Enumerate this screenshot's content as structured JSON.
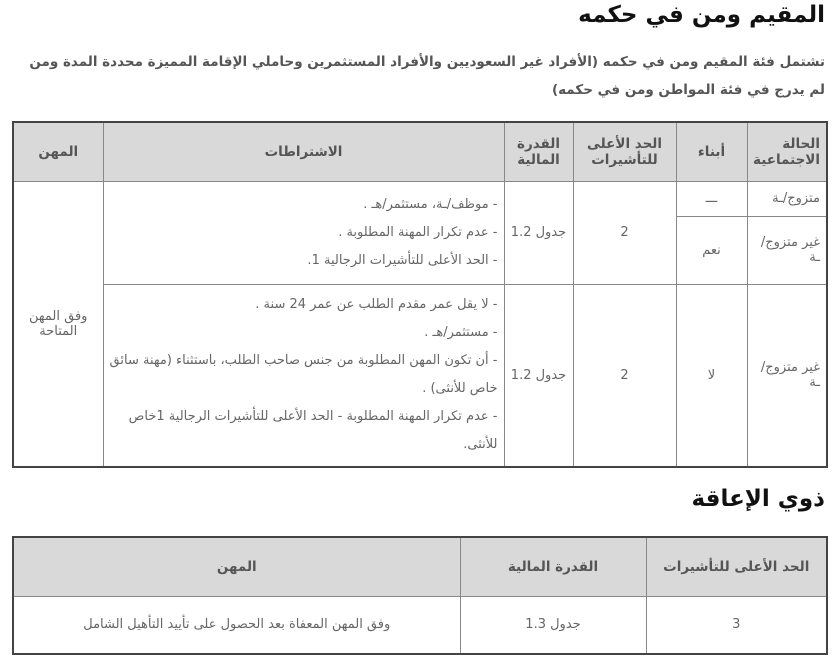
{
  "resident": {
    "title": "المقيم ومن في حكمه",
    "intro": "تشتمل فئة المقيم ومن في حكمه (الأفراد غير السعوديين والأفراد المستثمرين وحاملي الإقامة المميزة محددة المدة ومن لم يدرج في فئة المواطن ومن في حكمه)",
    "headers": [
      "الحالة الاجتماعية",
      "أبناء",
      "الحد الأعلى للتأشيرات",
      "القدرة المالية",
      "الاشتراطات",
      "المهن"
    ],
    "rows": [
      {
        "status_a": "متزوج/ـة",
        "children_a": "ـــ",
        "status_b": "غير متزوج/ـة",
        "children_b": "نعم",
        "max_visas": "2",
        "financial": "جدول 1.2",
        "conditions": [
          "- موظف/ـة، مستثمر/هـ .",
          "- عدم تكرار المهنة المطلوبة .",
          "- الحد الأعلى للتأشيرات الرجالية 1."
        ]
      },
      {
        "status": "غير متزوج/ـة",
        "children": "لا",
        "max_visas": "2",
        "financial": "جدول 1.2",
        "conditions": [
          "- لا يقل عمر مقدم الطلب عن عمر 24 سنة .",
          "- مستثمر/هـ .",
          "-  أن تكون المهن المطلوبة من جنس صاحب الطلب، باستثناء (مهنة سائق خاص للأنثى) .",
          "-  عدم تكرار المهنة المطلوبة - الحد الأعلى للتأشيرات الرجالية 1خاص للأنثى."
        ]
      }
    ],
    "professions": "وفق المهن المتاحة"
  },
  "disability": {
    "title": "ذوي الإعاقة",
    "headers": [
      "الحد الأعلى للتأشيرات",
      "القدرة المالية",
      "المهن"
    ],
    "row": [
      "3",
      "جدول 1.3",
      "وفق المهن المعفاة بعد الحصول على تأييد التأهيل الشامل"
    ]
  }
}
